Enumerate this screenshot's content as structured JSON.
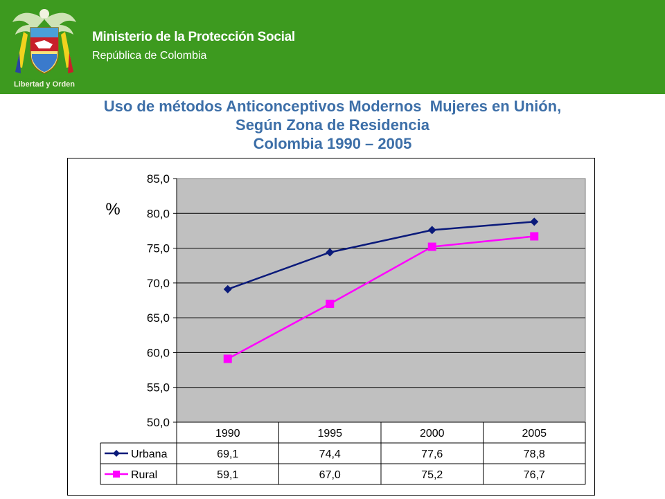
{
  "header": {
    "ministry": "Ministerio de la Protección Social",
    "republic": "República de Colombia",
    "seal_motto": "Libertad y Orden",
    "bg_color": "#3d9a1f"
  },
  "title": {
    "line1": "Uso de métodos Anticonceptivos Modernos  Mujeres en Unión,",
    "line2": "Según Zona de Residencia",
    "line3": "Colombia 1990 – 2005"
  },
  "chart_data": {
    "type": "line",
    "ylabel": "%",
    "ylim": [
      50,
      85
    ],
    "yticks": [
      "50,0",
      "55,0",
      "60,0",
      "65,0",
      "70,0",
      "75,0",
      "80,0",
      "85,0"
    ],
    "grid": true,
    "categories": [
      "1990",
      "1995",
      "2000",
      "2005"
    ],
    "series": [
      {
        "name": "Urbana",
        "values": [
          69.1,
          74.4,
          77.6,
          78.8
        ],
        "labels": [
          "69,1",
          "74,4",
          "77,6",
          "78,8"
        ],
        "color": "#0a1a7a",
        "marker": "diamond"
      },
      {
        "name": "Rural",
        "values": [
          59.1,
          67.0,
          75.2,
          76.7
        ],
        "labels": [
          "59,1",
          "67,0",
          "75,2",
          "76,7"
        ],
        "color": "#ff00ff",
        "marker": "square"
      }
    ],
    "plot_bg": "#c0c0c0",
    "data_table": true
  }
}
